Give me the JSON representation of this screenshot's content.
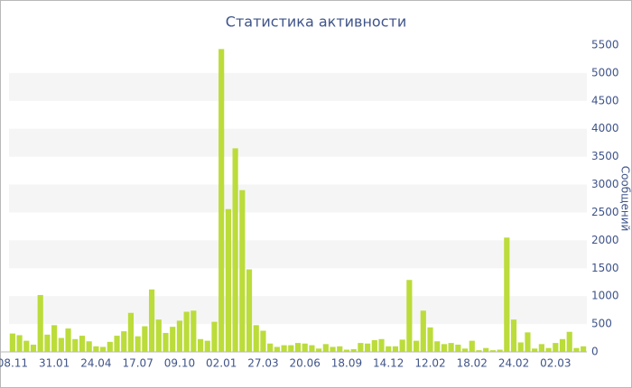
{
  "chart_data": {
    "type": "bar",
    "title": "Статистика активности",
    "y_label": "Сообщений",
    "categories": [
      "08.11",
      null,
      null,
      null,
      null,
      null,
      "31.01",
      null,
      null,
      null,
      null,
      null,
      "24.04",
      null,
      null,
      null,
      null,
      null,
      "17.07",
      null,
      null,
      null,
      null,
      null,
      "09.10",
      null,
      null,
      null,
      null,
      null,
      "02.01",
      null,
      null,
      null,
      null,
      null,
      "27.03",
      null,
      null,
      null,
      null,
      null,
      "20.06",
      null,
      null,
      null,
      null,
      null,
      "18.09",
      null,
      null,
      null,
      null,
      null,
      "14.12",
      null,
      null,
      null,
      null,
      null,
      "12.02",
      null,
      null,
      null,
      null,
      null,
      "18.02",
      null,
      null,
      null,
      null,
      null,
      "24.02",
      null,
      null,
      null,
      null,
      null,
      "02.03",
      null,
      null,
      null,
      null
    ],
    "values": [
      330,
      300,
      200,
      130,
      1020,
      310,
      480,
      250,
      420,
      230,
      290,
      190,
      100,
      90,
      180,
      290,
      370,
      700,
      280,
      460,
      1120,
      580,
      340,
      450,
      560,
      720,
      740,
      230,
      200,
      540,
      5430,
      2560,
      3650,
      2900,
      1480,
      480,
      380,
      150,
      90,
      120,
      120,
      160,
      150,
      120,
      60,
      140,
      90,
      100,
      40,
      50,
      160,
      150,
      210,
      230,
      100,
      100,
      220,
      1290,
      200,
      740,
      440,
      190,
      140,
      160,
      130,
      60,
      200,
      30,
      70,
      30,
      40,
      2050,
      580,
      170,
      350,
      60,
      140,
      70,
      160,
      230,
      360,
      70,
      100
    ],
    "color": "#bbdc3a",
    "ylim": [
      0,
      5500
    ],
    "yticks": [
      0,
      500,
      1000,
      1500,
      2000,
      2500,
      3000,
      3500,
      4000,
      4500,
      5000,
      5500
    ],
    "grid": "bands",
    "y_axis_side": "right"
  }
}
